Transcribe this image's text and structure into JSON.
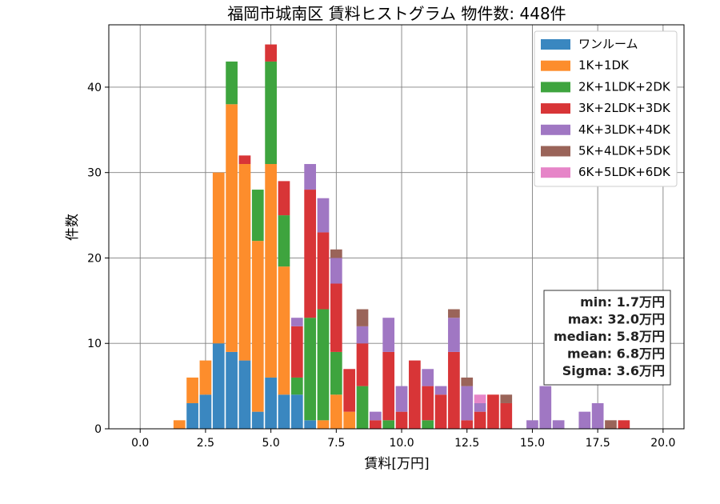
{
  "chart_data": {
    "type": "bar",
    "stacked": true,
    "title": "福岡市城南区 賃料ヒストグラム 物件数: 448件",
    "xlabel": "賃料[万円]",
    "ylabel": "件数",
    "xlim": [
      -1.2,
      20.8
    ],
    "ylim": [
      0,
      47.3
    ],
    "bin_width": 0.5,
    "xticks": [
      0.0,
      2.5,
      5.0,
      7.5,
      10.0,
      12.5,
      15.0,
      17.5,
      20.0
    ],
    "xtick_labels": [
      "0.0",
      "2.5",
      "5.0",
      "7.5",
      "10.0",
      "12.5",
      "15.0",
      "17.5",
      "20.0"
    ],
    "yticks": [
      0,
      10,
      20,
      30,
      40
    ],
    "ytick_labels": [
      "0",
      "10",
      "20",
      "30",
      "40"
    ],
    "grid": true,
    "legend_position": "top-right",
    "x": [
      1.5,
      2.0,
      2.5,
      3.0,
      3.5,
      4.0,
      4.5,
      5.0,
      5.5,
      6.0,
      6.5,
      7.0,
      7.5,
      8.0,
      8.5,
      9.0,
      9.5,
      10.0,
      10.5,
      11.0,
      11.5,
      12.0,
      12.5,
      13.0,
      13.5,
      14.0,
      14.5,
      15.0,
      15.5,
      16.0,
      16.5,
      17.0,
      17.5,
      18.0,
      18.5
    ],
    "series": [
      {
        "name": "ワンルーム",
        "color": "#3a87c0",
        "values": [
          0,
          3,
          4,
          10,
          9,
          8,
          2,
          6,
          4,
          4,
          1,
          0,
          0,
          0,
          0,
          0,
          0,
          0,
          0,
          0,
          0,
          0,
          0,
          0,
          0,
          0,
          0,
          0,
          0,
          0,
          0,
          0,
          0,
          0,
          0
        ]
      },
      {
        "name": "1K+1DK",
        "color": "#fd8d2c",
        "values": [
          1,
          3,
          4,
          20,
          29,
          23,
          20,
          25,
          15,
          0,
          0,
          1,
          4,
          2,
          0,
          0,
          0,
          0,
          0,
          0,
          0,
          0,
          0,
          0,
          0,
          0,
          0,
          0,
          0,
          0,
          0,
          0,
          0,
          0,
          0
        ]
      },
      {
        "name": "2K+1LDK+2DK",
        "color": "#3ea43e",
        "values": [
          0,
          0,
          0,
          0,
          5,
          0,
          6,
          12,
          6,
          2,
          12,
          13,
          5,
          0,
          5,
          0,
          1,
          0,
          0,
          1,
          0,
          0,
          0,
          0,
          0,
          0,
          0,
          0,
          0,
          0,
          0,
          0,
          0,
          0,
          0
        ]
      },
      {
        "name": "3K+2LDK+3DK",
        "color": "#d83537",
        "values": [
          0,
          0,
          0,
          0,
          0,
          1,
          0,
          2,
          4,
          6,
          15,
          9,
          8,
          5,
          5,
          1,
          8,
          2,
          8,
          4,
          4,
          9,
          1,
          2,
          4,
          3,
          0,
          0,
          0,
          0,
          0,
          0,
          0,
          0,
          1
        ]
      },
      {
        "name": "4K+3LDK+4DK",
        "color": "#a077c3",
        "values": [
          0,
          0,
          0,
          0,
          0,
          0,
          0,
          0,
          0,
          1,
          3,
          4,
          3,
          0,
          2,
          1,
          4,
          3,
          0,
          2,
          1,
          4,
          4,
          1,
          0,
          0,
          0,
          1,
          5,
          1,
          0,
          2,
          3,
          0,
          0
        ]
      },
      {
        "name": "5K+4LDK+5DK",
        "color": "#9a6459",
        "values": [
          0,
          0,
          0,
          0,
          0,
          0,
          0,
          0,
          0,
          0,
          0,
          0,
          1,
          0,
          2,
          0,
          0,
          0,
          0,
          0,
          0,
          1,
          1,
          0,
          0,
          1,
          0,
          0,
          0,
          0,
          0,
          0,
          0,
          1,
          0
        ]
      },
      {
        "name": "6K+5LDK+6DK",
        "color": "#e685c8",
        "values": [
          0,
          0,
          0,
          0,
          0,
          0,
          0,
          0,
          0,
          0,
          0,
          0,
          0,
          0,
          0,
          0,
          0,
          0,
          0,
          0,
          0,
          0,
          0,
          1,
          0,
          0,
          0,
          0,
          0,
          0,
          0,
          0,
          0,
          0,
          0
        ]
      }
    ],
    "stats": [
      "min: 1.7万円",
      "max: 32.0万円",
      "median: 5.8万円",
      "mean: 6.8万円",
      "Sigma: 3.6万円"
    ]
  }
}
